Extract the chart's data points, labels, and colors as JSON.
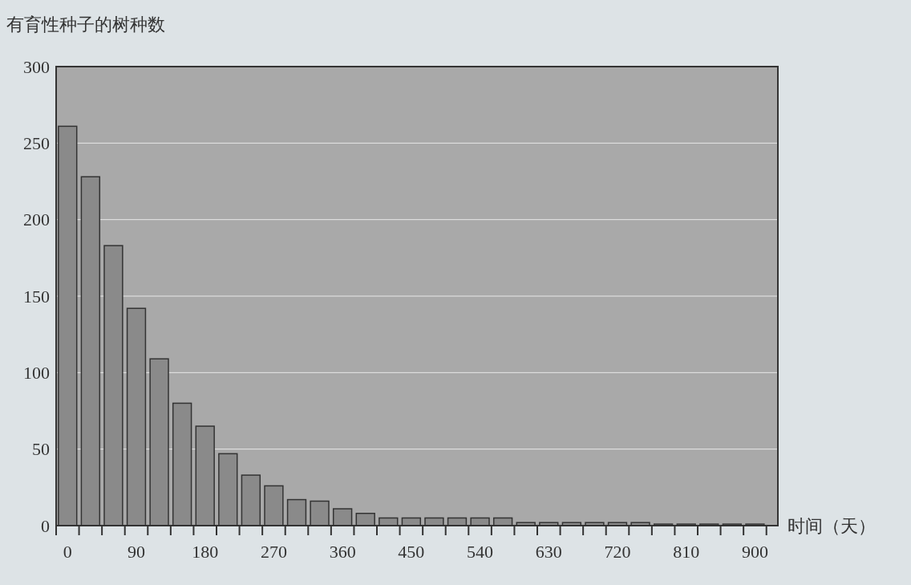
{
  "chart_data": {
    "type": "bar",
    "ylabel": "有育性种子的树种数",
    "xlabel": "时间（天）",
    "categories": [
      "0",
      null,
      null,
      "90",
      null,
      null,
      "180",
      null,
      null,
      "270",
      null,
      null,
      "360",
      null,
      null,
      "450",
      null,
      null,
      "540",
      null,
      null,
      "630",
      null,
      null,
      "720",
      null,
      null,
      "810",
      null,
      null,
      "900"
    ],
    "values": [
      261,
      228,
      183,
      142,
      109,
      80,
      65,
      47,
      33,
      26,
      17,
      16,
      11,
      8,
      5,
      5,
      5,
      5,
      5,
      5,
      2,
      2,
      2,
      2,
      2,
      2,
      1,
      1,
      1,
      1,
      1
    ],
    "color": "#8a8a8a",
    "ylim": [
      0,
      300
    ],
    "yticks": [
      0,
      50,
      100,
      150,
      200,
      250,
      300
    ],
    "grid": "y"
  }
}
